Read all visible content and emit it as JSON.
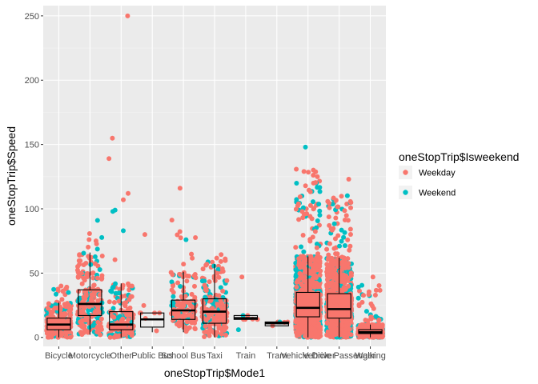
{
  "chart_data": {
    "type": "boxplot-jitter",
    "xlabel": "oneStopTrip$Mode1",
    "ylabel": "oneStopTrip$Speed",
    "ylim": [
      -7,
      258
    ],
    "yticks": [
      0,
      50,
      100,
      150,
      200,
      250
    ],
    "grid": true,
    "legend": {
      "title": "oneStopTrip$Isweekend",
      "position": "right",
      "entries": [
        {
          "label": "Weekday",
          "color": "#F8766D"
        },
        {
          "label": "Weekend",
          "color": "#00BFC4"
        }
      ]
    },
    "categories": [
      "Bicycle",
      "Motorcycle",
      "Other",
      "Public Bus",
      "School Bus",
      "Taxi",
      "Train",
      "Tram",
      "Vehicle Driver",
      "Vehicle Passenger",
      "Walking"
    ],
    "boxes": [
      {
        "category": "Bicycle",
        "q1": 6,
        "median": 10,
        "q3": 15,
        "whisker_low": 0,
        "whisker_high": 27
      },
      {
        "category": "Motorcycle",
        "q1": 17,
        "median": 26,
        "q3": 37,
        "whisker_low": 2,
        "whisker_high": 66
      },
      {
        "category": "Other",
        "q1": 6,
        "median": 10,
        "q3": 20,
        "whisker_low": 0,
        "whisker_high": 42
      },
      {
        "category": "Public Bus",
        "q1": 8,
        "median": 14,
        "q3": 19,
        "whisker_low": 4,
        "whisker_high": 19
      },
      {
        "category": "School Bus",
        "q1": 14,
        "median": 21,
        "q3": 29,
        "whisker_low": 4,
        "whisker_high": 51
      },
      {
        "category": "Taxi",
        "q1": 11,
        "median": 20,
        "q3": 30,
        "whisker_low": 0,
        "whisker_high": 57
      },
      {
        "category": "Train",
        "q1": 14,
        "median": 15,
        "q3": 17,
        "whisker_low": 14,
        "whisker_high": 17
      },
      {
        "category": "Tram",
        "q1": 9,
        "median": 11,
        "q3": 12,
        "whisker_low": 9,
        "whisker_high": 12
      },
      {
        "category": "Vehicle Driver",
        "q1": 16,
        "median": 23,
        "q3": 35,
        "whisker_low": 0,
        "whisker_high": 63
      },
      {
        "category": "Vehicle Passenger",
        "q1": 15,
        "median": 22,
        "q3": 34,
        "whisker_low": 0,
        "whisker_high": 62
      },
      {
        "category": "Walking",
        "q1": 3,
        "median": 4,
        "q3": 6,
        "whisker_low": 0,
        "whisker_high": 10
      }
    ],
    "points_summary": [
      {
        "category": "Bicycle",
        "weekday_count": 250,
        "weekend_count": 70,
        "max_speed": 45
      },
      {
        "category": "Motorcycle",
        "weekday_count": 180,
        "weekend_count": 60,
        "max_speed": 91
      },
      {
        "category": "Other",
        "weekday_count": 130,
        "weekend_count": 60,
        "max_speed": 250
      },
      {
        "category": "Public Bus",
        "weekday_count": 7,
        "weekend_count": 0,
        "max_speed": 80
      },
      {
        "category": "School Bus",
        "weekday_count": 120,
        "weekend_count": 25,
        "max_speed": 116
      },
      {
        "category": "Taxi",
        "weekday_count": 170,
        "weekend_count": 50,
        "max_speed": 73
      },
      {
        "category": "Train",
        "weekday_count": 5,
        "weekend_count": 1,
        "max_speed": 47
      },
      {
        "category": "Tram",
        "weekday_count": 4,
        "weekend_count": 1,
        "max_speed": 12
      },
      {
        "category": "Vehicle Driver",
        "weekday_count": 1100,
        "weekend_count": 500,
        "max_speed": 148
      },
      {
        "category": "Vehicle Passenger",
        "weekday_count": 1000,
        "weekend_count": 450,
        "max_speed": 123
      },
      {
        "category": "Walking",
        "weekday_count": 500,
        "weekend_count": 150,
        "max_speed": 47
      }
    ],
    "outliers": [
      {
        "category": "Other",
        "speed": 250,
        "group": "Weekday"
      },
      {
        "category": "Other",
        "speed": 112,
        "group": "Weekday"
      },
      {
        "category": "Other",
        "speed": 107,
        "group": "Weekday"
      },
      {
        "category": "Other",
        "speed": 99,
        "group": "Weekend"
      },
      {
        "category": "Other",
        "speed": 98,
        "group": "Weekend"
      },
      {
        "category": "Public Bus",
        "speed": 80,
        "group": "Weekday"
      },
      {
        "category": "School Bus",
        "speed": 116,
        "group": "Weekday"
      },
      {
        "category": "School Bus",
        "speed": 76,
        "group": "Weekend"
      },
      {
        "category": "Motorcycle",
        "speed": 91,
        "group": "Weekend"
      },
      {
        "category": "Train",
        "speed": 47,
        "group": "Weekday"
      },
      {
        "category": "Train",
        "speed": 6,
        "group": "Weekend"
      },
      {
        "category": "Vehicle Driver",
        "speed": 148,
        "group": "Weekend"
      },
      {
        "category": "Vehicle Driver",
        "speed": 129,
        "group": "Weekday"
      },
      {
        "category": "Vehicle Passenger",
        "speed": 123,
        "group": "Weekday"
      },
      {
        "category": "Walking",
        "speed": 47,
        "group": "Weekday"
      }
    ]
  }
}
